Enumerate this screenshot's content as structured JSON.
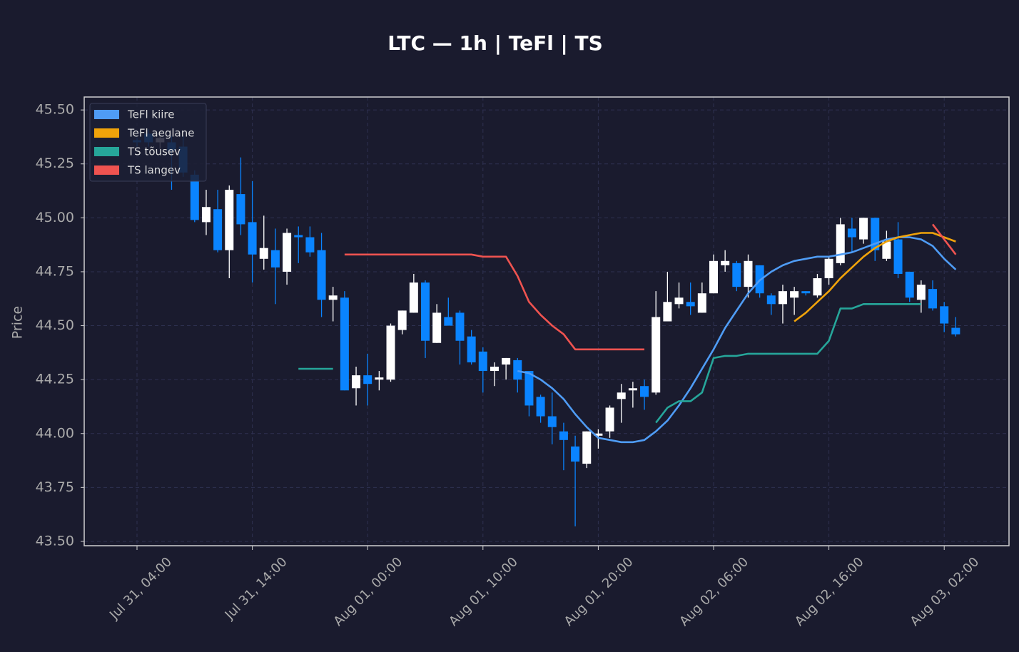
{
  "chart_data": {
    "type": "candlestick",
    "title": "LTC — 1h  |  TeFl  |  TS",
    "y_label": "Price",
    "categories": [
      "Jul 31, 04:00",
      null,
      null,
      null,
      null,
      null,
      null,
      null,
      null,
      null,
      "Jul 31, 14:00",
      null,
      null,
      null,
      null,
      null,
      null,
      null,
      null,
      null,
      "Aug 01, 00:00",
      null,
      null,
      null,
      null,
      null,
      null,
      null,
      null,
      null,
      "Aug 01, 10:00",
      null,
      null,
      null,
      null,
      null,
      null,
      null,
      null,
      null,
      "Aug 01, 20:00",
      null,
      null,
      null,
      null,
      null,
      null,
      null,
      null,
      null,
      "Aug 02, 06:00",
      null,
      null,
      null,
      null,
      null,
      null,
      null,
      null,
      null,
      "Aug 02, 16:00",
      null,
      null,
      null,
      null,
      null,
      null,
      null,
      null,
      null,
      "Aug 03, 02:00",
      null
    ],
    "open": [
      45.36,
      45.39,
      45.35,
      45.35,
      45.33,
      45.2,
      44.98,
      45.04,
      44.85,
      45.11,
      44.98,
      44.81,
      44.85,
      44.75,
      44.92,
      44.91,
      44.85,
      44.62,
      44.63,
      44.21,
      44.27,
      44.25,
      44.25,
      44.48,
      44.56,
      44.7,
      44.42,
      44.54,
      44.56,
      44.45,
      44.38,
      44.29,
      44.32,
      44.34,
      44.29,
      44.17,
      44.08,
      44.01,
      43.94,
      43.86,
      43.99,
      44.01,
      44.16,
      44.2,
      44.22,
      44.19,
      44.52,
      44.6,
      44.61,
      44.56,
      44.65,
      44.78,
      44.79,
      44.68,
      44.78,
      44.64,
      44.6,
      44.63,
      44.66,
      44.64,
      44.72,
      44.79,
      44.95,
      44.9,
      45.0,
      44.81,
      44.9,
      44.75,
      44.62,
      44.67,
      44.59,
      44.49
    ],
    "high": [
      45.37,
      45.41,
      45.38,
      45.38,
      45.38,
      45.22,
      45.13,
      45.13,
      45.15,
      45.28,
      45.17,
      45.01,
      44.95,
      44.95,
      44.96,
      44.96,
      44.93,
      44.68,
      44.66,
      44.31,
      44.37,
      44.29,
      44.51,
      44.57,
      44.74,
      44.71,
      44.6,
      44.63,
      44.57,
      44.48,
      44.4,
      44.33,
      44.35,
      44.35,
      44.29,
      44.18,
      44.19,
      44.05,
      43.99,
      44.01,
      44.02,
      44.13,
      44.23,
      44.24,
      44.25,
      44.66,
      44.75,
      44.7,
      44.7,
      44.7,
      44.83,
      44.85,
      44.8,
      44.83,
      44.78,
      44.65,
      44.69,
      44.68,
      44.66,
      44.74,
      44.82,
      45.0,
      45.0,
      45.0,
      45.0,
      44.94,
      44.98,
      44.75,
      44.71,
      44.71,
      44.61,
      44.54
    ],
    "low": [
      45.33,
      45.33,
      45.32,
      45.13,
      45.19,
      44.98,
      44.92,
      44.84,
      44.72,
      44.92,
      44.7,
      44.76,
      44.6,
      44.69,
      44.79,
      44.82,
      44.54,
      44.52,
      44.2,
      44.13,
      44.13,
      44.2,
      44.24,
      44.46,
      44.56,
      44.35,
      44.42,
      44.5,
      44.32,
      44.32,
      44.19,
      44.22,
      44.25,
      44.19,
      44.08,
      44.05,
      43.95,
      43.83,
      43.57,
      43.84,
      43.93,
      43.98,
      44.05,
      44.12,
      44.11,
      44.18,
      44.52,
      44.58,
      44.55,
      44.56,
      44.65,
      44.75,
      44.66,
      44.63,
      44.63,
      44.55,
      44.51,
      44.55,
      44.64,
      44.63,
      44.69,
      44.78,
      44.84,
      44.88,
      44.8,
      44.8,
      44.72,
      44.61,
      44.56,
      44.57,
      44.47,
      44.45
    ],
    "close": [
      45.35,
      45.35,
      45.37,
      45.31,
      45.21,
      44.99,
      45.05,
      44.85,
      45.13,
      44.97,
      44.83,
      44.86,
      44.77,
      44.93,
      44.91,
      44.84,
      44.62,
      44.64,
      44.2,
      44.27,
      44.23,
      44.26,
      44.5,
      44.57,
      44.7,
      44.43,
      44.56,
      44.5,
      44.43,
      44.33,
      44.29,
      44.31,
      44.35,
      44.25,
      44.13,
      44.08,
      44.03,
      43.97,
      43.87,
      44.01,
      44.0,
      44.12,
      44.19,
      44.21,
      44.17,
      44.54,
      44.61,
      44.63,
      44.59,
      44.65,
      44.8,
      44.8,
      44.68,
      44.8,
      44.65,
      44.6,
      44.66,
      44.66,
      44.65,
      44.72,
      44.81,
      44.97,
      44.91,
      45.0,
      44.85,
      44.89,
      44.74,
      44.63,
      44.69,
      44.58,
      44.51,
      44.46
    ],
    "up_color": "#ffffff",
    "down_color": "#0a84ff",
    "series": [
      {
        "name": "TeFl kiire",
        "color": "#4f9cf5",
        "values": [
          null,
          null,
          null,
          null,
          null,
          null,
          null,
          null,
          null,
          null,
          null,
          null,
          null,
          null,
          null,
          null,
          null,
          null,
          null,
          null,
          null,
          null,
          null,
          null,
          null,
          null,
          null,
          null,
          null,
          null,
          null,
          null,
          null,
          44.29,
          44.28,
          44.25,
          44.21,
          44.16,
          44.09,
          44.03,
          43.98,
          43.97,
          43.96,
          43.96,
          43.97,
          44.01,
          44.06,
          44.13,
          44.21,
          44.3,
          44.39,
          44.49,
          44.57,
          44.65,
          44.71,
          44.75,
          44.78,
          44.8,
          44.81,
          44.82,
          44.82,
          44.83,
          44.84,
          44.86,
          44.88,
          44.9,
          44.91,
          44.91,
          44.9,
          44.87,
          44.81,
          44.76
        ]
      },
      {
        "name": "TeFl aeglane",
        "color": "#f0a30a",
        "values": [
          null,
          null,
          null,
          null,
          null,
          null,
          null,
          null,
          null,
          null,
          null,
          null,
          null,
          null,
          null,
          null,
          null,
          null,
          null,
          null,
          null,
          null,
          null,
          null,
          null,
          null,
          null,
          null,
          null,
          null,
          null,
          null,
          null,
          null,
          null,
          null,
          null,
          null,
          null,
          null,
          null,
          null,
          null,
          null,
          null,
          null,
          null,
          null,
          null,
          null,
          null,
          null,
          null,
          null,
          null,
          null,
          null,
          44.52,
          44.56,
          44.61,
          44.66,
          44.72,
          44.77,
          44.82,
          44.86,
          44.89,
          44.91,
          44.92,
          44.93,
          44.93,
          44.91,
          44.89
        ]
      },
      {
        "name": "TS tõusev",
        "color": "#26a69a",
        "values": [
          null,
          null,
          null,
          null,
          null,
          null,
          null,
          null,
          null,
          null,
          null,
          null,
          null,
          null,
          44.3,
          44.3,
          44.3,
          44.3,
          null,
          null,
          null,
          null,
          null,
          null,
          null,
          null,
          null,
          null,
          null,
          null,
          null,
          null,
          null,
          null,
          null,
          null,
          null,
          null,
          null,
          null,
          null,
          null,
          null,
          null,
          null,
          44.05,
          44.12,
          44.15,
          44.15,
          44.19,
          44.35,
          44.36,
          44.36,
          44.37,
          44.37,
          44.37,
          44.37,
          44.37,
          44.37,
          44.37,
          44.43,
          44.58,
          44.58,
          44.6,
          44.6,
          44.6,
          44.6,
          44.6,
          44.6,
          null,
          null,
          null
        ]
      },
      {
        "name": "TS langev",
        "color": "#ef5350",
        "values": [
          null,
          null,
          null,
          null,
          null,
          null,
          null,
          null,
          null,
          null,
          null,
          null,
          null,
          null,
          null,
          null,
          null,
          null,
          44.83,
          44.83,
          44.83,
          44.83,
          44.83,
          44.83,
          44.83,
          44.83,
          44.83,
          44.83,
          44.83,
          44.83,
          44.82,
          44.82,
          44.82,
          44.73,
          44.61,
          44.55,
          44.5,
          44.46,
          44.39,
          44.39,
          44.39,
          44.39,
          44.39,
          44.39,
          44.39,
          null,
          null,
          null,
          null,
          null,
          null,
          null,
          null,
          null,
          null,
          null,
          null,
          null,
          null,
          null,
          null,
          null,
          null,
          null,
          null,
          null,
          null,
          null,
          null,
          44.97,
          44.9,
          44.83
        ]
      }
    ],
    "ylim": [
      43.48,
      45.56
    ],
    "yticks": [
      {
        "value": 43.5,
        "label": "43.50"
      },
      43.75,
      {
        "value": 44.0,
        "label": "44.00"
      },
      44.25,
      {
        "value": 44.5,
        "label": "44.50"
      },
      44.75,
      {
        "value": 45.0,
        "label": "45.00"
      },
      45.25,
      {
        "value": 45.5,
        "label": "45.50"
      }
    ],
    "grid": true,
    "legend": "upper left"
  }
}
